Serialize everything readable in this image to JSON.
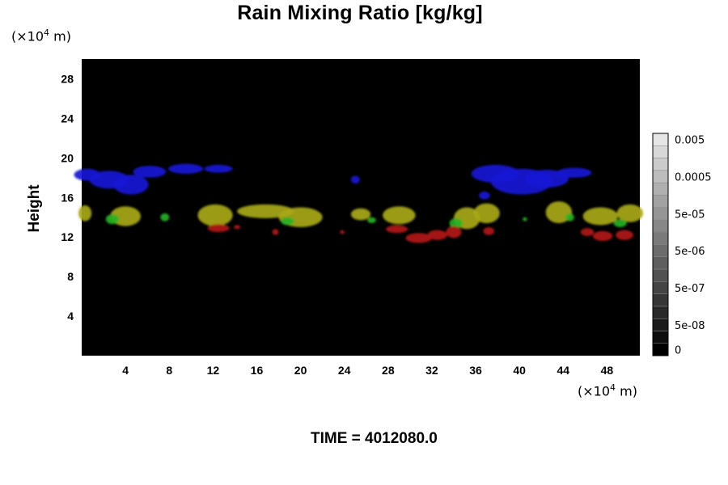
{
  "chart_data": {
    "type": "heatmap",
    "title": "Rain Mixing Ratio [kg/kg]",
    "ylabel": "Height",
    "xlabel": "",
    "x_unit_prefix": "(×10",
    "x_unit_exp": "4",
    "x_unit_suffix": " m)",
    "y_unit_prefix": "(×10",
    "y_unit_exp": "4",
    "y_unit_suffix": " m)",
    "xlim": [
      0,
      51
    ],
    "ylim": [
      0,
      30
    ],
    "x_ticks": [
      4,
      8,
      12,
      16,
      20,
      24,
      28,
      32,
      36,
      40,
      44,
      48
    ],
    "x_tick_labels": [
      "4",
      "8",
      "12",
      "16",
      "20",
      "24",
      "28",
      "32",
      "36",
      "40",
      "44",
      "48"
    ],
    "y_ticks": [
      4,
      8,
      12,
      16,
      20,
      24,
      28
    ],
    "y_tick_labels": [
      "4",
      "8",
      "12",
      "16",
      "20",
      "24",
      "28"
    ],
    "background_color": "#000000",
    "colorbar": {
      "levels": 18,
      "labels": [
        {
          "level": 0,
          "text": "0"
        },
        {
          "level": 2,
          "text": "5e-08"
        },
        {
          "level": 5,
          "text": "5e-07"
        },
        {
          "level": 8,
          "text": "5e-06"
        },
        {
          "level": 11,
          "text": "5e-05"
        },
        {
          "level": 14,
          "text": "0.0005"
        },
        {
          "level": 17,
          "text": "0.005"
        }
      ]
    },
    "features": [
      {
        "color": "#1a1ad6",
        "blobs": [
          [
            0.5,
            18.3,
            1.2,
            0.6
          ],
          [
            2.5,
            17.8,
            1.8,
            0.9
          ],
          [
            4.5,
            17.3,
            1.6,
            1.0
          ],
          [
            6.2,
            18.6,
            1.5,
            0.6
          ],
          [
            9.5,
            18.9,
            1.6,
            0.5
          ],
          [
            12.5,
            18.9,
            1.3,
            0.4
          ],
          [
            37.8,
            18.4,
            2.2,
            0.9
          ],
          [
            40.2,
            17.6,
            2.8,
            1.3
          ],
          [
            42.5,
            17.9,
            2.0,
            0.9
          ],
          [
            45.0,
            18.5,
            1.6,
            0.5
          ],
          [
            25.0,
            17.8,
            0.4,
            0.4
          ],
          [
            36.8,
            16.2,
            0.5,
            0.4
          ]
        ]
      },
      {
        "color": "#a8a81a",
        "blobs": [
          [
            0.3,
            14.4,
            0.6,
            0.8
          ],
          [
            4.0,
            14.1,
            1.4,
            1.0
          ],
          [
            12.2,
            14.2,
            1.6,
            1.1
          ],
          [
            16.8,
            14.6,
            2.6,
            0.7
          ],
          [
            20.0,
            14.0,
            2.0,
            1.0
          ],
          [
            25.5,
            14.3,
            0.9,
            0.6
          ],
          [
            29.0,
            14.2,
            1.5,
            0.9
          ],
          [
            35.2,
            13.9,
            1.2,
            1.1
          ],
          [
            37.0,
            14.4,
            1.2,
            1.0
          ],
          [
            43.6,
            14.5,
            1.2,
            1.1
          ],
          [
            47.4,
            14.1,
            1.6,
            0.9
          ],
          [
            50.1,
            14.4,
            1.2,
            0.9
          ]
        ]
      },
      {
        "color": "#24b224",
        "blobs": [
          [
            2.8,
            13.8,
            0.6,
            0.5
          ],
          [
            7.6,
            14.0,
            0.4,
            0.4
          ],
          [
            18.8,
            13.6,
            0.6,
            0.4
          ],
          [
            26.5,
            13.7,
            0.4,
            0.3
          ],
          [
            34.2,
            13.4,
            0.6,
            0.5
          ],
          [
            44.6,
            14.0,
            0.4,
            0.4
          ],
          [
            49.2,
            13.4,
            0.6,
            0.4
          ],
          [
            40.5,
            13.8,
            0.2,
            0.2
          ]
        ]
      },
      {
        "color": "#b21a1a",
        "blobs": [
          [
            12.5,
            12.9,
            1.0,
            0.4
          ],
          [
            14.2,
            13.0,
            0.3,
            0.2
          ],
          [
            17.7,
            12.5,
            0.3,
            0.3
          ],
          [
            23.8,
            12.5,
            0.2,
            0.2
          ],
          [
            28.8,
            12.8,
            1.0,
            0.4
          ],
          [
            30.8,
            11.9,
            1.2,
            0.5
          ],
          [
            32.5,
            12.2,
            0.9,
            0.5
          ],
          [
            34.0,
            12.5,
            0.7,
            0.6
          ],
          [
            37.2,
            12.6,
            0.5,
            0.4
          ],
          [
            46.2,
            12.5,
            0.6,
            0.4
          ],
          [
            47.6,
            12.1,
            0.9,
            0.5
          ],
          [
            49.6,
            12.2,
            0.8,
            0.5
          ]
        ]
      }
    ]
  },
  "footer": {
    "time_label": "TIME = 4012080.0"
  }
}
